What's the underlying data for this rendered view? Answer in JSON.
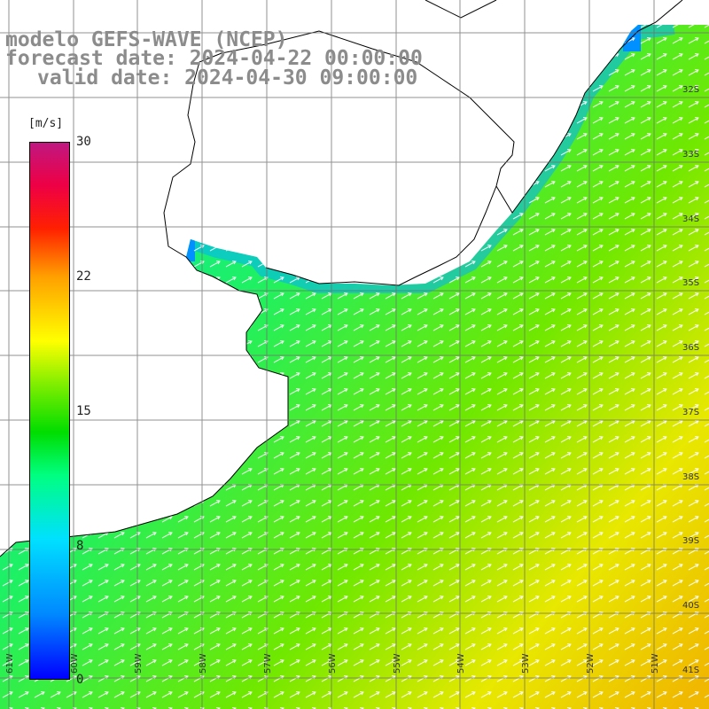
{
  "title": {
    "line1": "modelo GEFS-WAVE (NCEP)",
    "line2": "forecast date: 2024-04-22 00:00:00",
    "line3": "valid date: 2024-04-30 09:00:00"
  },
  "colorbar": {
    "unit": "[m/s]",
    "ticks": [
      {
        "label": "30",
        "value": 30
      },
      {
        "label": "22",
        "value": 22
      },
      {
        "label": "15",
        "value": 15
      },
      {
        "label": "8",
        "value": 8
      },
      {
        "label": "0",
        "value": 0
      }
    ],
    "min": 0,
    "max": 30
  },
  "lat_labels": [
    "32S",
    "33S",
    "34S",
    "35S",
    "36S",
    "37S",
    "38S",
    "39S",
    "40S",
    "41S"
  ],
  "lon_labels": [
    "61W",
    "60W",
    "59W",
    "58W",
    "57W",
    "56W",
    "55W",
    "54W",
    "53W",
    "52W",
    "51W"
  ],
  "colors": {
    "land": "#ffffff",
    "coast": "#000000",
    "grid": "#6e6e6e",
    "title": "#8c8c8c"
  }
}
